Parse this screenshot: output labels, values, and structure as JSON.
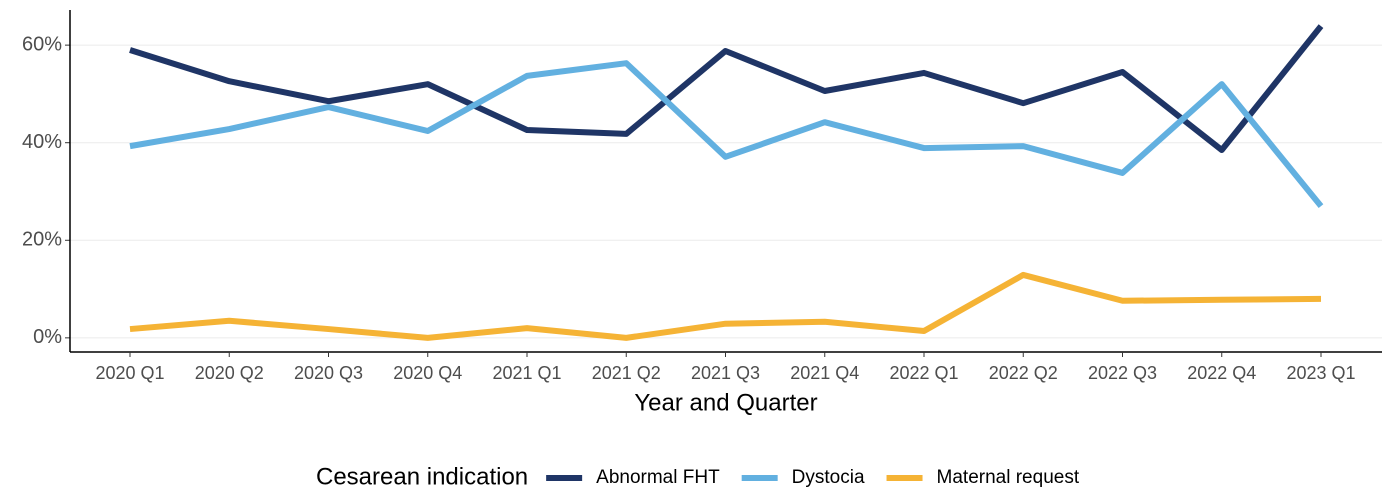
{
  "chart_data": {
    "type": "line",
    "x_label": "Year and Quarter",
    "legend_title": "Cesarean indication",
    "legend_position": "bottom",
    "categories": [
      "2020 Q1",
      "2020 Q2",
      "2020 Q3",
      "2020 Q4",
      "2021 Q1",
      "2021 Q2",
      "2021 Q3",
      "2021 Q4",
      "2022 Q1",
      "2022 Q2",
      "2022 Q3",
      "2022 Q4",
      "2023 Q1"
    ],
    "series": [
      {
        "name": "Abnormal FHT",
        "color": "#1f3566",
        "values": [
          59,
          52.6,
          48.5,
          52,
          42.6,
          41.8,
          58.8,
          50.6,
          54.3,
          48.1,
          54.5,
          38.5,
          63.9
        ]
      },
      {
        "name": "Dystocia",
        "color": "#62b0e0",
        "values": [
          39.3,
          42.8,
          47.3,
          42.4,
          53.7,
          56.3,
          37.1,
          44.2,
          38.9,
          39.3,
          33.8,
          52,
          27
        ]
      },
      {
        "name": "Maternal request",
        "color": "#f5b335",
        "values": [
          1.8,
          3.5,
          1.8,
          0,
          2,
          0,
          2.9,
          3.3,
          1.4,
          12.9,
          7.6,
          7.8,
          8
        ]
      }
    ],
    "ylim": [
      -2.9,
      67.2
    ],
    "yticks": [
      {
        "value": 0,
        "label": "0%"
      },
      {
        "value": 20,
        "label": "20%"
      },
      {
        "value": 40,
        "label": "40%"
      },
      {
        "value": 60,
        "label": "60%"
      }
    ],
    "grid": true
  }
}
